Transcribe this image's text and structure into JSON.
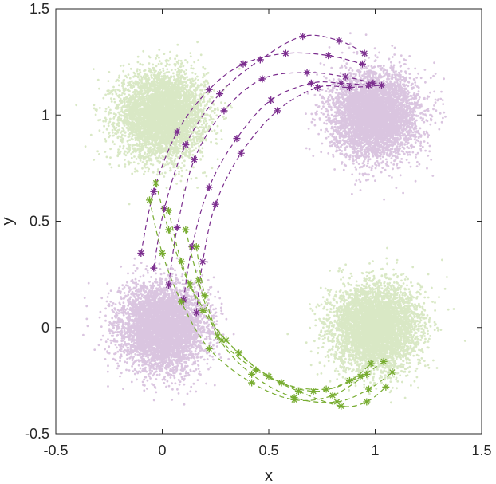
{
  "chart_data": {
    "type": "scatter",
    "title": "",
    "xlabel": "x",
    "ylabel": "y",
    "xlim": [
      -0.5,
      1.5
    ],
    "ylim": [
      -0.5,
      1.5
    ],
    "x_ticks": [
      -0.5,
      0,
      0.5,
      1,
      1.5
    ],
    "y_ticks": [
      -0.5,
      0,
      0.5,
      1,
      1.5
    ],
    "x_tick_labels": [
      "-0.5",
      "0",
      "0.5",
      "1",
      "1.5"
    ],
    "y_tick_labels": [
      "-0.5",
      "0",
      "0.5",
      "1",
      "1.5"
    ],
    "grid": false,
    "colors": {
      "purple": "#7B2D8E",
      "green": "#77AC30"
    },
    "clusters": [
      {
        "color": "green",
        "center": [
          0,
          1
        ],
        "std": 0.1,
        "approx_points": 20000
      },
      {
        "color": "purple",
        "center": [
          1,
          1
        ],
        "std": 0.1,
        "approx_points": 20000
      },
      {
        "color": "purple",
        "center": [
          0,
          0
        ],
        "std": 0.1,
        "approx_points": 20000
      },
      {
        "color": "green",
        "center": [
          1,
          0
        ],
        "std": 0.1,
        "approx_points": 20000
      }
    ],
    "trajectories": [
      {
        "color": "purple",
        "x": [
          -0.1,
          -0.04,
          0.07,
          0.22,
          0.38,
          0.58,
          0.78,
          0.94
        ],
        "y": [
          0.35,
          0.64,
          0.92,
          1.12,
          1.24,
          1.29,
          1.28,
          1.24
        ]
      },
      {
        "color": "purple",
        "x": [
          -0.04,
          0.01,
          0.11,
          0.27,
          0.46,
          0.66,
          0.83,
          0.95
        ],
        "y": [
          0.28,
          0.56,
          0.86,
          1.1,
          1.26,
          1.37,
          1.35,
          1.29
        ]
      },
      {
        "color": "purple",
        "x": [
          0.03,
          0.07,
          0.15,
          0.29,
          0.47,
          0.68,
          0.86,
          0.99
        ],
        "y": [
          0.2,
          0.47,
          0.79,
          1.02,
          1.17,
          1.2,
          1.18,
          1.15
        ]
      },
      {
        "color": "purple",
        "x": [
          0.1,
          0.14,
          0.22,
          0.35,
          0.51,
          0.7,
          0.84,
          0.97
        ],
        "y": [
          0.13,
          0.38,
          0.66,
          0.89,
          1.07,
          1.15,
          1.15,
          1.14
        ]
      },
      {
        "color": "purple",
        "x": [
          0.16,
          0.19,
          0.25,
          0.37,
          0.54,
          0.73,
          0.88,
          1.03
        ],
        "y": [
          0.07,
          0.31,
          0.58,
          0.82,
          1.02,
          1.13,
          1.13,
          1.14
        ]
      },
      {
        "color": "green",
        "x": [
          -0.06,
          0.0,
          0.09,
          0.22,
          0.42,
          0.62,
          0.8,
          0.96
        ],
        "y": [
          0.6,
          0.35,
          0.12,
          -0.1,
          -0.26,
          -0.34,
          -0.32,
          -0.22
        ]
      },
      {
        "color": "green",
        "x": [
          -0.03,
          0.03,
          0.13,
          0.3,
          0.5,
          0.71,
          0.88,
          0.98
        ],
        "y": [
          0.68,
          0.46,
          0.2,
          -0.06,
          -0.23,
          -0.3,
          -0.25,
          -0.17
        ]
      },
      {
        "color": "green",
        "x": [
          0.03,
          0.09,
          0.19,
          0.36,
          0.56,
          0.77,
          0.93,
          1.04
        ],
        "y": [
          0.55,
          0.31,
          0.08,
          -0.12,
          -0.26,
          -0.29,
          -0.23,
          -0.16
        ]
      },
      {
        "color": "green",
        "x": [
          0.11,
          0.17,
          0.26,
          0.42,
          0.62,
          0.82,
          0.97,
          1.08
        ],
        "y": [
          0.46,
          0.22,
          -0.04,
          -0.22,
          -0.33,
          -0.35,
          -0.29,
          -0.21
        ]
      },
      {
        "color": "green",
        "x": [
          0.16,
          0.2,
          0.28,
          0.44,
          0.64,
          0.84,
          0.96,
          1.05
        ],
        "y": [
          0.38,
          0.15,
          -0.06,
          -0.2,
          -0.3,
          -0.37,
          -0.35,
          -0.28
        ]
      }
    ]
  }
}
